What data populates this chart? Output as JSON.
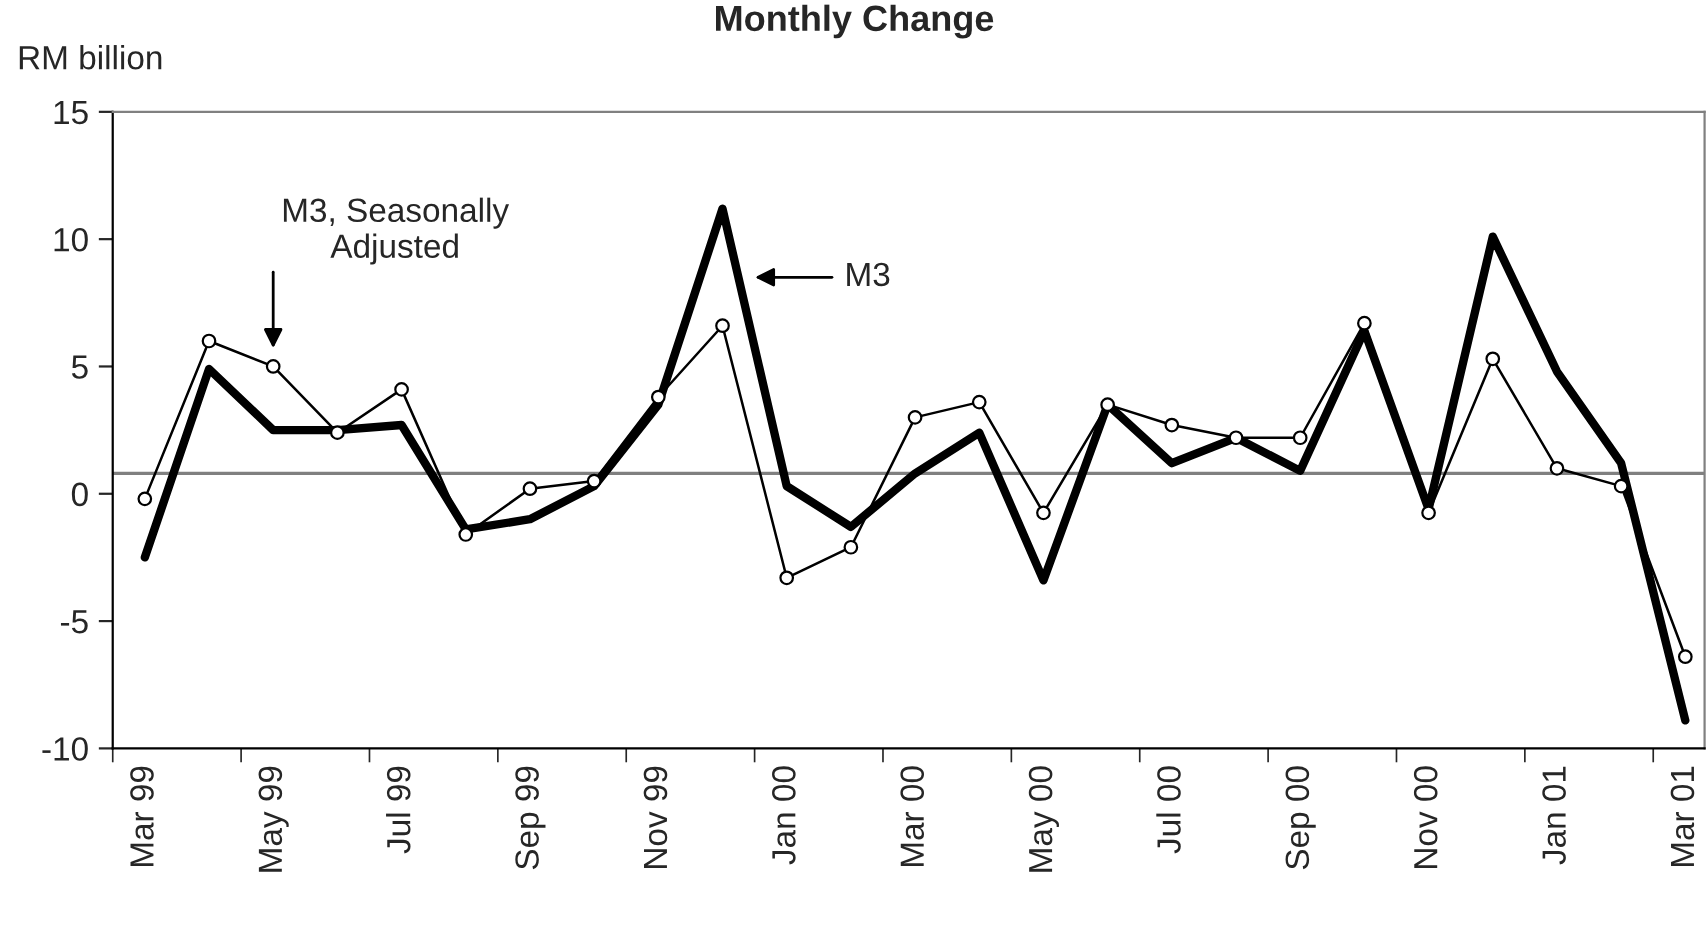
{
  "chart_data": {
    "type": "line",
    "title": "Monthly Change",
    "ylabel": "RM billion",
    "categories": [
      "Mar 99",
      null,
      "May 99",
      null,
      "Jul 99",
      null,
      "Sep 99",
      null,
      "Nov 99",
      null,
      "Jan 00",
      null,
      "Mar 00",
      null,
      "May 00",
      null,
      "Jul 00",
      null,
      "Sep 00",
      null,
      "Nov 00",
      null,
      "Jan 01",
      null,
      "Mar 01"
    ],
    "series": [
      {
        "name": "M3, Seasonally Adjusted",
        "color": "#000000",
        "marker": "circle",
        "values": [
          -0.2,
          6.0,
          5.0,
          2.4,
          4.1,
          -1.6,
          0.2,
          0.5,
          3.8,
          6.6,
          -3.3,
          -2.1,
          3.0,
          3.6,
          -0.75,
          3.5,
          2.7,
          2.2,
          2.2,
          6.7,
          -0.75,
          5.3,
          1.0,
          0.3,
          -6.4
        ]
      },
      {
        "name": "M3",
        "color": "#000000",
        "marker": "none",
        "values": [
          -2.5,
          4.9,
          2.5,
          2.5,
          2.7,
          -1.4,
          -1.0,
          0.3,
          3.5,
          11.2,
          0.3,
          -1.3,
          0.8,
          2.4,
          -3.4,
          3.5,
          1.2,
          2.2,
          0.9,
          6.4,
          -0.6,
          10.1,
          4.8,
          1.2,
          -8.9
        ]
      }
    ],
    "ylim": [
      -10,
      15
    ],
    "yticks": [
      -10,
      -5,
      0,
      5,
      10,
      15
    ],
    "grid": false,
    "ref_lines": [
      {
        "axis": "y",
        "value": 0.8,
        "color": "#808080"
      }
    ]
  }
}
